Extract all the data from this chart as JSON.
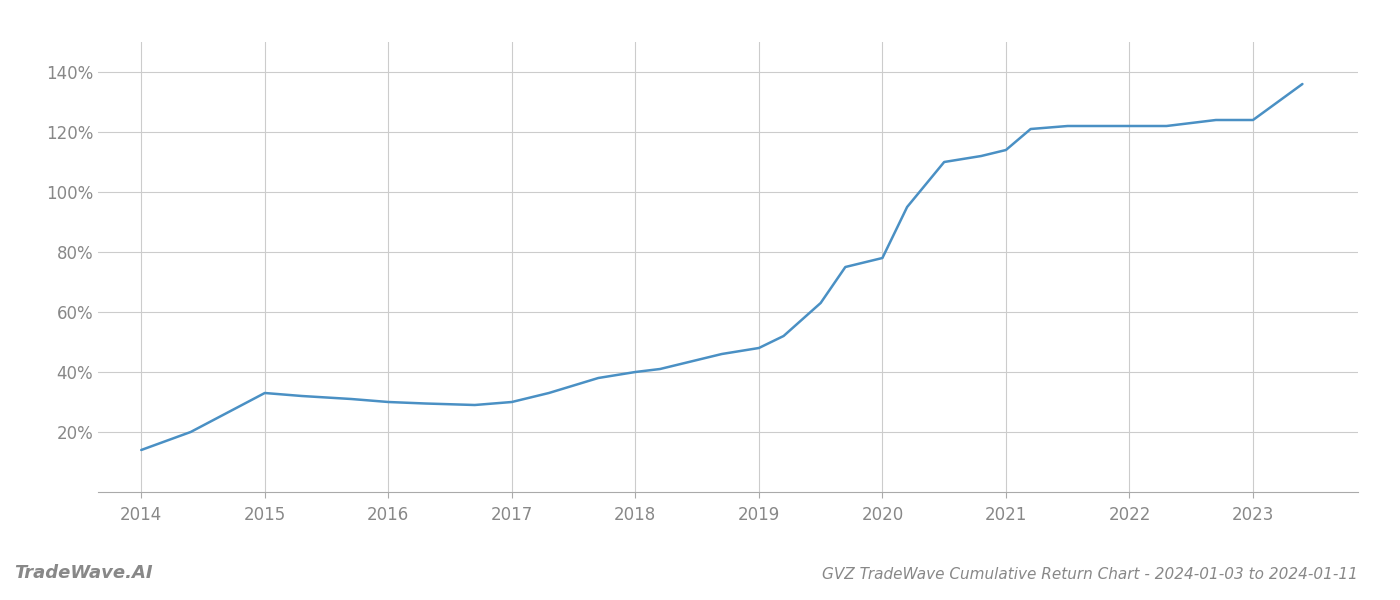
{
  "x_years": [
    2014.0,
    2014.4,
    2015.0,
    2015.3,
    2015.7,
    2016.0,
    2016.3,
    2016.7,
    2017.0,
    2017.3,
    2017.7,
    2018.0,
    2018.2,
    2018.5,
    2018.7,
    2018.85,
    2019.0,
    2019.2,
    2019.5,
    2019.7,
    2020.0,
    2020.2,
    2020.5,
    2020.8,
    2021.0,
    2021.2,
    2021.5,
    2021.7,
    2022.0,
    2022.3,
    2022.7,
    2023.0,
    2023.4
  ],
  "y_values": [
    14,
    20,
    33,
    32,
    31,
    30,
    29.5,
    29,
    30,
    33,
    38,
    40,
    41,
    44,
    46,
    47,
    48,
    52,
    63,
    75,
    78,
    95,
    110,
    112,
    114,
    121,
    122,
    122,
    122,
    122,
    124,
    124,
    136
  ],
  "line_color": "#4a90c4",
  "line_width": 1.8,
  "bg_color": "#ffffff",
  "grid_color": "#cccccc",
  "title": "GVZ TradeWave Cumulative Return Chart - 2024-01-03 to 2024-01-11",
  "watermark": "TradeWave.AI",
  "xlim": [
    2013.65,
    2023.85
  ],
  "ylim": [
    0,
    150
  ],
  "yticks": [
    20,
    40,
    60,
    80,
    100,
    120,
    140
  ],
  "xticks": [
    2014,
    2015,
    2016,
    2017,
    2018,
    2019,
    2020,
    2021,
    2022,
    2023
  ],
  "title_fontsize": 11,
  "watermark_fontsize": 13,
  "tick_fontsize": 12,
  "tick_color": "#888888"
}
